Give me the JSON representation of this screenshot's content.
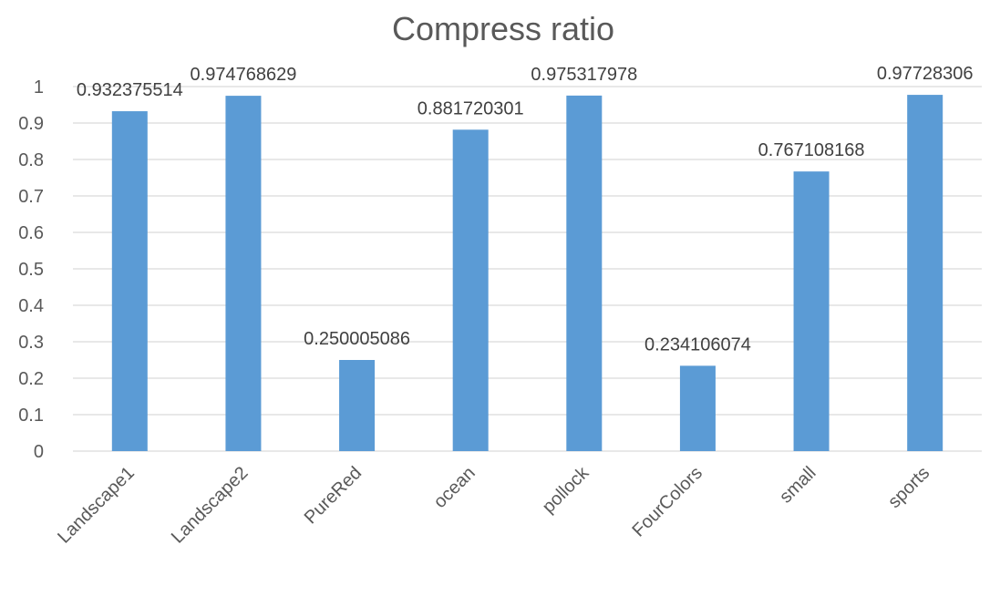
{
  "chart_data": {
    "type": "bar",
    "title": "Compress ratio",
    "xlabel": "",
    "ylabel": "",
    "categories": [
      "Landscape1",
      "Landscape2",
      "PureRed",
      "ocean",
      "pollock",
      "FourColors",
      "small",
      "sports"
    ],
    "values": [
      0.932375514,
      0.974768629,
      0.250005086,
      0.881720301,
      0.975317978,
      0.234106074,
      0.767108168,
      0.97728306
    ],
    "data_labels": [
      "0.932375514",
      "0.974768629",
      "0.250005086",
      "0.881720301",
      "0.975317978",
      "0.234106074",
      "0.767108168",
      "0.97728306"
    ],
    "ylim": [
      0,
      1
    ],
    "yticks": [
      "0",
      "0.1",
      "0.2",
      "0.3",
      "0.4",
      "0.5",
      "0.6",
      "0.7",
      "0.8",
      "0.9",
      "1"
    ],
    "grid": true,
    "legend": "none",
    "bar_color": "#5b9bd5"
  }
}
